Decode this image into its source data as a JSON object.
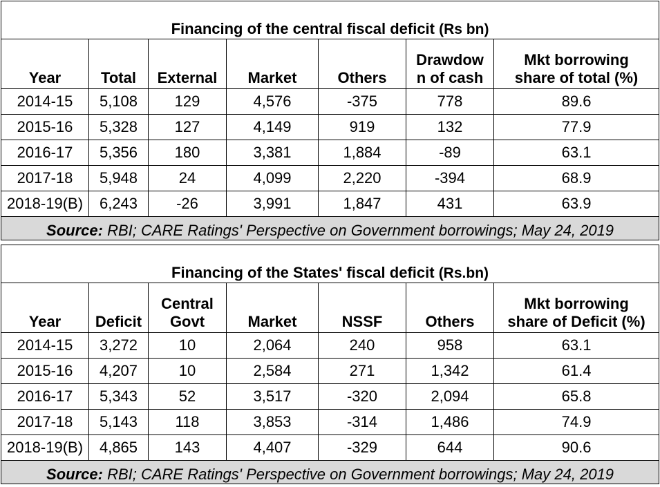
{
  "tables": [
    {
      "title": "Financing of the central fiscal deficit",
      "unit": "(Rs bn)",
      "headers": [
        [
          "Year"
        ],
        [
          "Total"
        ],
        [
          "External"
        ],
        [
          "Market"
        ],
        [
          "Others"
        ],
        [
          "Drawdow",
          "n of cash"
        ],
        [
          "Mkt borrowing",
          "share of total (%)"
        ]
      ],
      "rows": [
        [
          "2014-15",
          "5,108",
          "129",
          "4,576",
          "-375",
          "778",
          "89.6"
        ],
        [
          "2015-16",
          "5,328",
          "127",
          "4,149",
          "919",
          "132",
          "77.9"
        ],
        [
          "2016-17",
          "5,356",
          "180",
          "3,381",
          "1,884",
          "-89",
          "63.1"
        ],
        [
          "2017-18",
          "5,948",
          "24",
          "4,099",
          "2,220",
          "-394",
          "68.9"
        ],
        [
          "2018-19(B)",
          "6,243",
          "-26",
          "3,991",
          "1,847",
          "431",
          "63.9"
        ]
      ],
      "source_label": "Source:",
      "source_text": "RBI; CARE Ratings'  Perspective on Government borrowings; May 24, 2019"
    },
    {
      "title": "Financing of the States' fiscal deficit",
      "unit": "(Rs.bn)",
      "headers": [
        [
          "Year"
        ],
        [
          "Deficit"
        ],
        [
          "Central",
          "Govt"
        ],
        [
          "Market"
        ],
        [
          "NSSF"
        ],
        [
          "Others"
        ],
        [
          "Mkt borrowing",
          "share of Deficit (%)"
        ]
      ],
      "rows": [
        [
          "2014-15",
          "3,272",
          "10",
          "2,064",
          "240",
          "958",
          "63.1"
        ],
        [
          "2015-16",
          "4,207",
          "10",
          "2,584",
          "271",
          "1,342",
          "61.4"
        ],
        [
          "2016-17",
          "5,343",
          "52",
          "3,517",
          "-320",
          "2,094",
          "65.8"
        ],
        [
          "2017-18",
          "5,143",
          "118",
          "3,853",
          "-314",
          "1,486",
          "74.9"
        ],
        [
          "2018-19(B)",
          "4,865",
          "143",
          "4,407",
          "-329",
          "644",
          "90.6"
        ]
      ],
      "source_label": "Source:",
      "source_text": "RBI; CARE Ratings'  Perspective on Government borrowings; May 24, 2019"
    }
  ]
}
